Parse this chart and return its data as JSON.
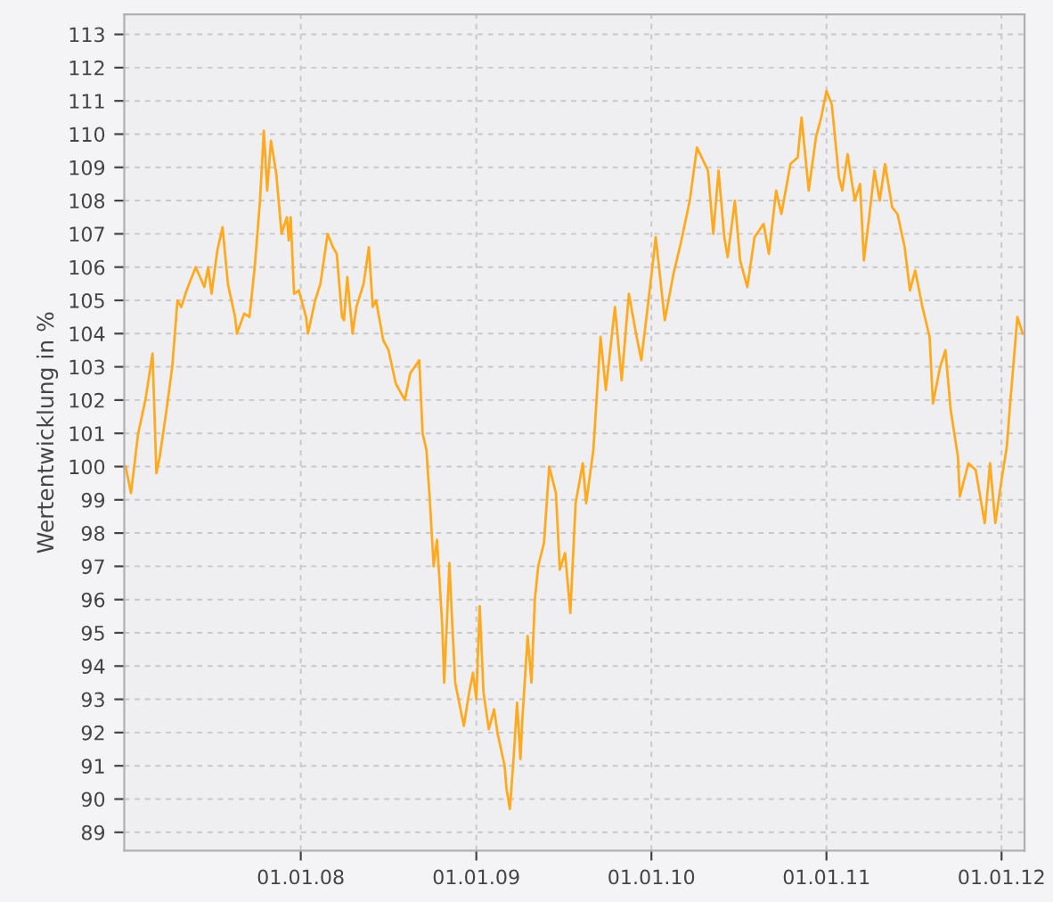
{
  "chart_data": {
    "type": "line",
    "ylabel": "Wertentwicklung in %",
    "xlim": [
      "2006-12-29",
      "2012-02-18"
    ],
    "ylim": [
      88.45,
      113.6
    ],
    "xticks": [
      {
        "value": "2008-01-01",
        "label": "01.01.08"
      },
      {
        "value": "2009-01-01",
        "label": "01.01.09"
      },
      {
        "value": "2010-01-01",
        "label": "01.01.10"
      },
      {
        "value": "2011-01-01",
        "label": "01.01.11"
      },
      {
        "value": "2012-01-01",
        "label": "01.01.12"
      }
    ],
    "yticks": [
      89,
      90,
      91,
      92,
      93,
      94,
      95,
      96,
      97,
      98,
      99,
      100,
      101,
      102,
      103,
      104,
      105,
      106,
      107,
      108,
      109,
      110,
      111,
      112,
      113
    ],
    "grid": true,
    "marker": "none",
    "line_style": "solid",
    "series": [
      {
        "color": "#ffaa1e",
        "x": [
          "2007-01-01",
          "2007-01-12",
          "2007-01-27",
          "2007-02-11",
          "2007-02-26",
          "2007-03-06",
          "2007-03-13",
          "2007-03-28",
          "2007-04-08",
          "2007-04-19",
          "2007-04-27",
          "2007-05-08",
          "2007-05-27",
          "2007-06-14",
          "2007-06-22",
          "2007-06-29",
          "2007-07-11",
          "2007-07-22",
          "2007-08-02",
          "2007-08-17",
          "2007-08-21",
          "2007-09-05",
          "2007-09-16",
          "2007-09-27",
          "2007-10-08",
          "2007-10-16",
          "2007-10-23",
          "2007-10-31",
          "2007-11-11",
          "2007-11-22",
          "2007-12-03",
          "2007-12-07",
          "2007-12-11",
          "2007-12-18",
          "2007-12-28",
          "2008-01-12",
          "2008-01-16",
          "2008-01-31",
          "2008-02-11",
          "2008-02-26",
          "2008-03-08",
          "2008-03-16",
          "2008-03-27",
          "2008-03-31",
          "2008-04-07",
          "2008-04-18",
          "2008-04-26",
          "2008-05-11",
          "2008-05-22",
          "2008-05-30",
          "2008-06-06",
          "2008-06-21",
          "2008-07-02",
          "2008-07-17",
          "2008-08-05",
          "2008-08-16",
          "2008-09-04",
          "2008-09-11",
          "2008-09-19",
          "2008-09-26",
          "2008-10-04",
          "2008-10-11",
          "2008-10-22",
          "2008-10-26",
          "2008-11-06",
          "2008-11-10",
          "2008-11-18",
          "2008-12-06",
          "2008-12-17",
          "2008-12-25",
          "2009-01-01",
          "2009-01-08",
          "2009-01-16",
          "2009-01-27",
          "2009-02-07",
          "2009-02-14",
          "2009-03-01",
          "2009-03-05",
          "2009-03-12",
          "2009-03-20",
          "2009-03-27",
          "2009-04-03",
          "2009-04-07",
          "2009-04-18",
          "2009-04-26",
          "2009-05-03",
          "2009-05-10",
          "2009-05-22",
          "2009-06-02",
          "2009-06-16",
          "2009-06-24",
          "2009-07-05",
          "2009-07-16",
          "2009-07-27",
          "2009-08-11",
          "2009-08-18",
          "2009-09-02",
          "2009-09-17",
          "2009-09-28",
          "2009-10-17",
          "2009-10-31",
          "2009-11-15",
          "2009-11-30",
          "2009-12-11",
          "2009-12-30",
          "2010-01-10",
          "2010-01-29",
          "2010-02-16",
          "2010-03-03",
          "2010-03-22",
          "2010-04-06",
          "2010-04-29",
          "2010-05-10",
          "2010-05-21",
          "2010-06-02",
          "2010-06-09",
          "2010-06-24",
          "2010-07-05",
          "2010-07-20",
          "2010-08-04",
          "2010-08-23",
          "2010-09-03",
          "2010-09-18",
          "2010-09-29",
          "2010-10-18",
          "2010-11-02",
          "2010-11-10",
          "2010-11-25",
          "2010-12-10",
          "2010-12-21",
          "2011-01-01",
          "2011-01-12",
          "2011-01-27",
          "2011-02-03",
          "2011-02-14",
          "2011-03-01",
          "2011-03-12",
          "2011-03-20",
          "2011-03-31",
          "2011-04-11",
          "2011-04-22",
          "2011-05-03",
          "2011-05-18",
          "2011-05-29",
          "2011-06-13",
          "2011-06-24",
          "2011-07-05",
          "2011-07-20",
          "2011-08-04",
          "2011-08-11",
          "2011-08-26",
          "2011-09-06",
          "2011-09-17",
          "2011-10-02",
          "2011-10-06",
          "2011-10-24",
          "2011-11-08",
          "2011-11-27",
          "2011-12-08",
          "2011-12-19",
          "2012-01-01",
          "2012-01-12",
          "2012-01-19",
          "2012-02-03",
          "2012-02-14"
        ],
        "values": [
          100,
          99.2,
          101,
          102,
          103.4,
          99.8,
          100.3,
          101.8,
          103,
          105,
          104.8,
          105.3,
          106,
          105.4,
          106,
          105.2,
          106.5,
          107.2,
          105.5,
          104.5,
          104,
          104.6,
          104.5,
          106,
          108,
          110.1,
          108.3,
          109.8,
          108.8,
          107,
          107.5,
          106.8,
          107.5,
          105.2,
          105.3,
          104.5,
          104,
          105,
          105.5,
          107,
          106.6,
          106.4,
          104.5,
          104.4,
          105.7,
          104,
          104.8,
          105.5,
          106.6,
          104.8,
          105,
          103.8,
          103.5,
          102.5,
          102,
          102.8,
          103.2,
          101,
          100.5,
          99,
          97,
          97.8,
          95.2,
          93.5,
          97.1,
          95.8,
          93.5,
          92.2,
          93.2,
          93.8,
          93,
          95.8,
          93.2,
          92.1,
          92.7,
          92,
          91,
          90.3,
          89.7,
          91.3,
          92.9,
          91.2,
          92.4,
          94.9,
          93.5,
          96,
          97,
          97.7,
          100,
          99.2,
          96.9,
          97.4,
          95.6,
          98.9,
          100.1,
          98.9,
          100.5,
          103.9,
          102.3,
          104.8,
          102.6,
          105.2,
          104,
          103.2,
          105.5,
          106.9,
          104.4,
          105.8,
          106.7,
          108,
          109.6,
          108.9,
          107,
          108.9,
          106.9,
          106.3,
          108,
          106.2,
          105.4,
          106.9,
          107.3,
          106.4,
          108.3,
          107.6,
          109.1,
          109.3,
          110.5,
          108.3,
          109.9,
          110.5,
          111.3,
          110.9,
          108.7,
          108.3,
          109.4,
          108,
          108.5,
          106.2,
          107.5,
          108.9,
          108,
          109.1,
          107.8,
          107.6,
          106.6,
          105.3,
          105.9,
          104.8,
          103.9,
          101.9,
          103,
          103.5,
          101.7,
          100.3,
          99.1,
          100.1,
          99.9,
          98.3,
          100.1,
          98.3,
          99.6,
          100.6,
          101.9,
          104.5,
          104
        ]
      }
    ]
  }
}
